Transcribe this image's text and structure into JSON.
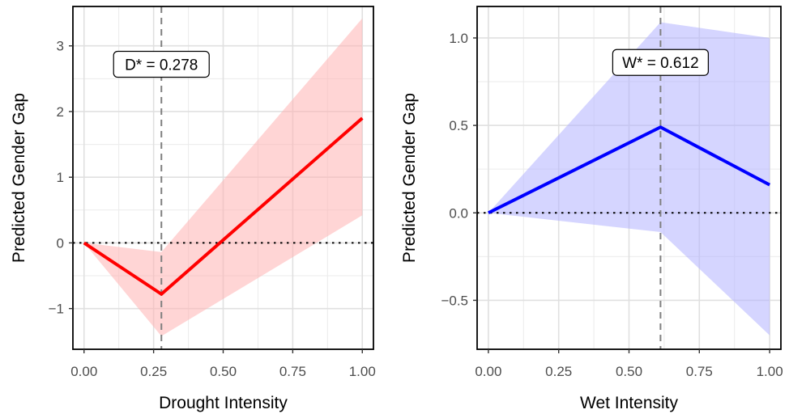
{
  "chart_data": [
    {
      "type": "line",
      "xlabel": "Drought Intensity",
      "ylabel": "Predicted Gender Gap",
      "xlim": [
        -0.04,
        1.04
      ],
      "ylim": [
        -1.62,
        3.6
      ],
      "xticks": [
        0.0,
        0.25,
        0.5,
        0.75,
        1.0
      ],
      "xtick_labels": [
        "0.00",
        "0.25",
        "0.50",
        "0.75",
        "1.00"
      ],
      "yticks": [
        -1,
        0,
        1,
        2,
        3
      ],
      "ytick_labels": [
        "−1",
        "0",
        "1",
        "2",
        "3"
      ],
      "grid": true,
      "series": [
        {
          "x": [
            0.0,
            0.278,
            1.0
          ],
          "y": [
            0.0,
            -0.78,
            1.9
          ],
          "lower": [
            0.0,
            -1.42,
            0.42
          ],
          "upper": [
            0.0,
            -0.14,
            3.42
          ],
          "color": "#ff0000",
          "band_color": "#ffb3b3"
        }
      ],
      "reference_vline": 0.278,
      "reference_hline": 0,
      "annotation": {
        "text": "D* = 0.278",
        "x": 0.278,
        "y": 2.72
      }
    },
    {
      "type": "line",
      "xlabel": "Wet Intensity",
      "ylabel": "Predicted Gender Gap",
      "xlim": [
        -0.04,
        1.04
      ],
      "ylim": [
        -0.78,
        1.18
      ],
      "xticks": [
        0.0,
        0.25,
        0.5,
        0.75,
        1.0
      ],
      "xtick_labels": [
        "0.00",
        "0.25",
        "0.50",
        "0.75",
        "1.00"
      ],
      "yticks": [
        -0.5,
        0.0,
        0.5,
        1.0
      ],
      "ytick_labels": [
        "−0.5",
        "0.0",
        "0.5",
        "1.0"
      ],
      "grid": true,
      "series": [
        {
          "x": [
            0.0,
            0.612,
            1.0
          ],
          "y": [
            0.0,
            0.49,
            0.16
          ],
          "lower": [
            0.0,
            -0.11,
            -0.7
          ],
          "upper": [
            0.0,
            1.09,
            1.0
          ],
          "color": "#0000ff",
          "band_color": "#b3b3ff"
        }
      ],
      "reference_vline": 0.612,
      "reference_hline": 0,
      "annotation": {
        "text": "W* = 0.612",
        "x": 0.612,
        "y": 0.86
      }
    }
  ]
}
